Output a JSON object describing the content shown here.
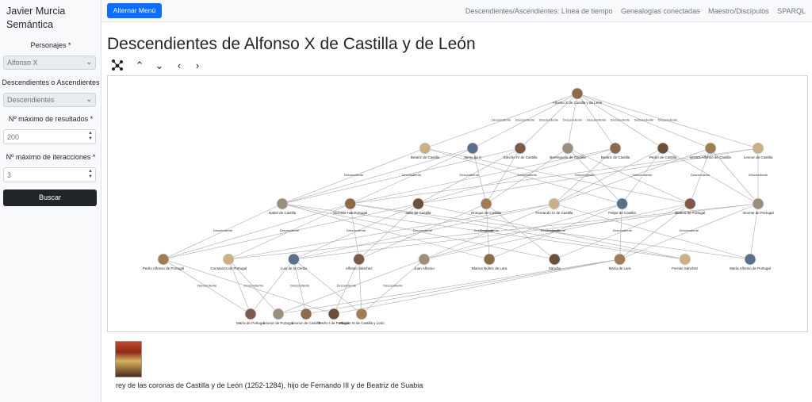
{
  "brand": "Javier Murcia Semántica",
  "sidebar": {
    "personajes_label": "Personajes *",
    "personaje_value": "Alfonso X",
    "tipo_label": "Descendientes o Ascendientes",
    "tipo_value": "Descendientes",
    "max_results_label": "Nº máximo de resultados *",
    "max_results_value": "200",
    "max_iter_label": "Nº máximo de iteracciones *",
    "max_iter_value": "3",
    "search_label": "Buscar"
  },
  "topbar": {
    "toggle_label": "Alternar Menú",
    "nav": [
      "Descendientes/Ascendientes: Línea de tiempo",
      "Genealogías conectadas",
      "Maestro/Discípulos",
      "SPARQL"
    ]
  },
  "page_title": "Descendientes de Alfonso X de Castilla y de León",
  "controls": {
    "network_icon": "network-icon",
    "up_icon": "chevron-up-icon",
    "down_icon": "chevron-down-icon",
    "left_icon": "chevron-left-icon",
    "right_icon": "chevron-right-icon"
  },
  "graph": {
    "edge_label": "Descendiente",
    "root": "Alfonso X de Castilla y de León",
    "level1": [
      "Beatriz de Castilla",
      "Jaime de C",
      "Sancho IV de Castilla",
      "Berenguela de Castilla",
      "Beatriz de Castilla",
      "Pedro de Castilla",
      "Urraca Alfonso de Castilla",
      "Leonor de Castilla"
    ],
    "level2": [
      "Isabel de Castilla",
      "Dionisio I de Portugal",
      "Juan de Castilla",
      "Enrique de Castilla",
      "Fernando IV de Castilla",
      "Felipe de Castilla",
      "Blanca de Portugal",
      "Vicente de Portugal"
    ],
    "level3": [
      "Pedro Alfonso de Portugal",
      "Constanza de Portugal",
      "Luis de la Cerda",
      "Alfonso Sánchez",
      "Juan Alfonso",
      "Blanca Núñez de Lara",
      "Sancho",
      "María de Lara",
      "Fernán Sánchez",
      "María Alfonso de Portugal"
    ],
    "level4": [
      "María de Portugal",
      "Leonor de Portugal",
      "Leonor de Castilla",
      "Pedro I de Portugal",
      "Alfonso XI de Castilla y León"
    ]
  },
  "description": "rey de las coronas de Castilla y de León (1252-1284), hijo de Fernando III y de Beatriz de Suabia",
  "colors": {
    "accent": "#0d6efd",
    "dark_button": "#212529",
    "node_label_bg": "#fbe3e3",
    "edge": "#aaaaaa"
  }
}
